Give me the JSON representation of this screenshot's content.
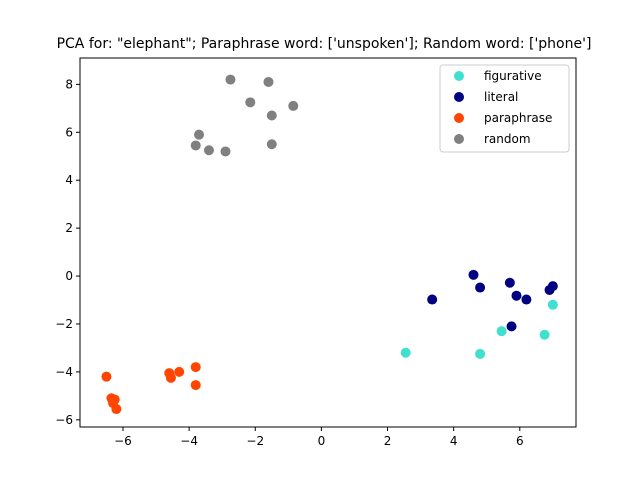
{
  "chart_data": {
    "type": "scatter",
    "title": "PCA for: \"elephant\"; Paraphrase word: ['unspoken']; Random word: ['phone']",
    "xlabel": "",
    "ylabel": "",
    "xlim": [
      -7.3,
      7.7
    ],
    "ylim": [
      -6.3,
      9.1
    ],
    "x_ticks": [
      -6,
      -4,
      -2,
      0,
      2,
      4,
      6
    ],
    "y_ticks": [
      -6,
      -4,
      -2,
      0,
      2,
      4,
      6,
      8
    ],
    "x_tick_labels": [
      "−6",
      "−4",
      "−2",
      "0",
      "2",
      "4",
      "6"
    ],
    "y_tick_labels": [
      "−6",
      "−4",
      "−2",
      "0",
      "2",
      "4",
      "6",
      "8"
    ],
    "grid": false,
    "legend_position": "top-right",
    "series": [
      {
        "name": "figurative",
        "color": "#40e0d0",
        "points": [
          [
            2.55,
            -3.2
          ],
          [
            4.8,
            -3.25
          ],
          [
            5.45,
            -2.3
          ],
          [
            6.75,
            -2.45
          ],
          [
            7.0,
            -1.2
          ]
        ]
      },
      {
        "name": "literal",
        "color": "#000080",
        "points": [
          [
            3.35,
            -0.98
          ],
          [
            4.6,
            0.05
          ],
          [
            4.8,
            -0.48
          ],
          [
            5.7,
            -0.28
          ],
          [
            5.9,
            -0.82
          ],
          [
            6.2,
            -0.98
          ],
          [
            5.75,
            -2.1
          ],
          [
            6.9,
            -0.58
          ],
          [
            7.0,
            -0.42
          ]
        ]
      },
      {
        "name": "paraphrase",
        "color": "#ff4500",
        "points": [
          [
            -6.5,
            -4.2
          ],
          [
            -6.35,
            -5.1
          ],
          [
            -6.3,
            -5.3
          ],
          [
            -6.25,
            -5.15
          ],
          [
            -6.2,
            -5.55
          ],
          [
            -4.6,
            -4.05
          ],
          [
            -4.55,
            -4.25
          ],
          [
            -4.3,
            -4.0
          ],
          [
            -3.8,
            -3.8
          ],
          [
            -3.8,
            -4.55
          ]
        ]
      },
      {
        "name": "random",
        "color": "#808080",
        "points": [
          [
            -3.8,
            5.45
          ],
          [
            -3.7,
            5.9
          ],
          [
            -3.4,
            5.25
          ],
          [
            -2.9,
            5.2
          ],
          [
            -2.75,
            8.2
          ],
          [
            -2.15,
            7.25
          ],
          [
            -1.6,
            8.1
          ],
          [
            -1.5,
            6.7
          ],
          [
            -1.5,
            5.5
          ],
          [
            -0.85,
            7.1
          ]
        ]
      }
    ]
  }
}
